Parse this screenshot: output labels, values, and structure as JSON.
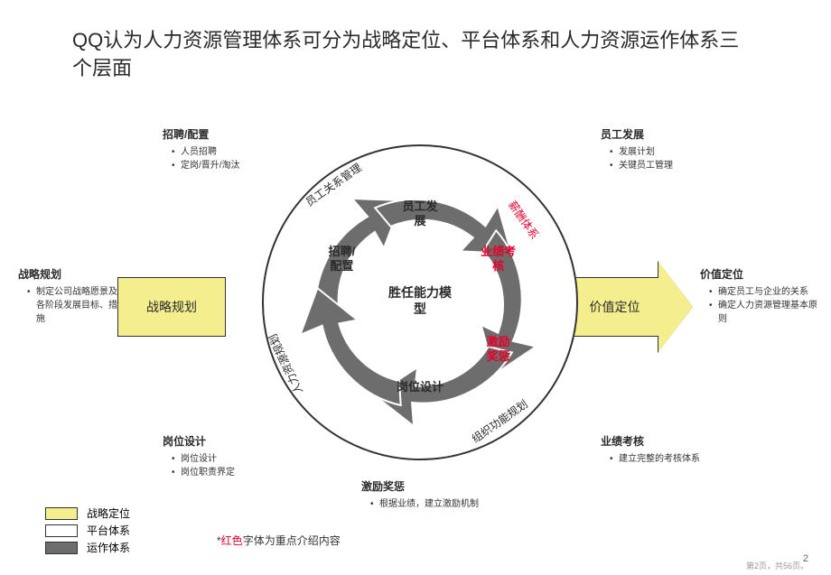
{
  "title": "QQ认为人力资源管理体系可分为战略定位、平台体系和人力资源运作体系三个层面",
  "colors": {
    "yellow": "#f5ee8e",
    "white": "#ffffff",
    "gray": "#6d6d6d",
    "text": "#2a2a2a",
    "red": "#e4002b",
    "border": "#333333"
  },
  "flow": {
    "left_box": "战略规划",
    "right_box": "价值定位",
    "center": "胜任能力模型",
    "segments": [
      {
        "label": "招聘/\n配置",
        "red": false,
        "angle": -60
      },
      {
        "label": "员工发\n展",
        "red": false,
        "angle": 0
      },
      {
        "label": "业绩考\n核",
        "red": true,
        "angle": 60
      },
      {
        "label": "激励\n奖惩",
        "red": true,
        "angle": 120
      },
      {
        "label": "岗位设计",
        "red": false,
        "angle": 180
      }
    ],
    "ring_labels": [
      {
        "text": "人力资源规划",
        "red": false,
        "angle": -115
      },
      {
        "text": "员工关系管理",
        "red": false,
        "angle": -35
      },
      {
        "text": "薪酬体系",
        "red": true,
        "angle": 55
      },
      {
        "text": "组织功能规划",
        "red": false,
        "angle": 145
      }
    ]
  },
  "callouts": {
    "top_left": {
      "hd": "招聘/配置",
      "items": [
        "人员招聘",
        "定岗/晋升/淘汰"
      ]
    },
    "top_right": {
      "hd": "员工发展",
      "items": [
        "发展计划",
        "关键员工管理"
      ]
    },
    "mid_left": {
      "hd": "战略规划",
      "items": [
        "制定公司战略愿景及各阶段发展目标、措施"
      ]
    },
    "mid_right": {
      "hd": "价值定位",
      "items": [
        "确定员工与企业的关系",
        "确定人力资源管理基本原则"
      ]
    },
    "bot_left": {
      "hd": "岗位设计",
      "items": [
        "岗位设计",
        "岗位职责界定"
      ]
    },
    "bot_right": {
      "hd": "业绩考核",
      "items": [
        "建立完整的考核体系"
      ]
    },
    "bot_center": {
      "hd": "激励奖惩",
      "items": [
        "根据业绩，建立激励机制"
      ]
    }
  },
  "legend": {
    "items": [
      {
        "color": "#f5ee8e",
        "label": "战略定位"
      },
      {
        "color": "#ffffff",
        "label": "平台体系"
      },
      {
        "color": "#6d6d6d",
        "label": "运作体系"
      }
    ],
    "note_prefix": "*",
    "note_red": "红色",
    "note_suffix": "字体为重点介绍内容"
  },
  "page": {
    "num": "2",
    "foot": "第2页，共56页。"
  }
}
